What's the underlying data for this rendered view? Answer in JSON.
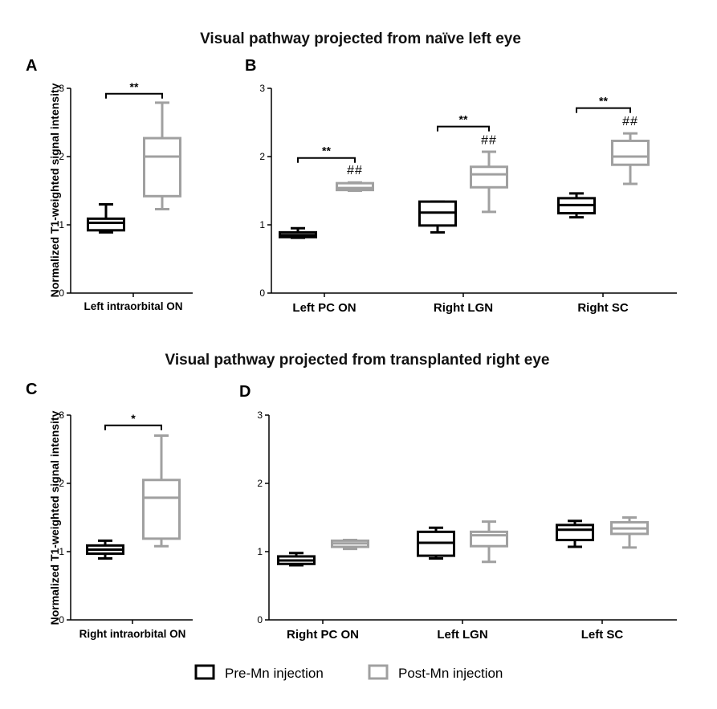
{
  "colors": {
    "pre": "#000000",
    "post": "#a0a0a0"
  },
  "titles": {
    "top": "Visual pathway projected from naïve left eye",
    "bottom": "Visual pathway projected from transplanted right eye"
  },
  "y_axis_label": "Normalized T1-weighted signal intensity",
  "legend": {
    "pre": "Pre-Mn injection",
    "post": "Post-Mn injection"
  },
  "chart_data": [
    {
      "panel": "A",
      "type": "box",
      "ylim": [
        0,
        3
      ],
      "yticks": [
        "0",
        "1",
        "2",
        "3"
      ],
      "ylabel": "Normalized T1-weighted signal intensity",
      "categories": [
        "Left intraorbital ON"
      ],
      "groups": [
        {
          "category": "Left intraorbital ON",
          "series": "pre",
          "min": 0.89,
          "q1": 0.92,
          "median": 1.03,
          "q3": 1.09,
          "max": 1.3
        },
        {
          "category": "Left intraorbital ON",
          "series": "post",
          "min": 1.23,
          "q1": 1.42,
          "median": 2.0,
          "q3": 2.27,
          "max": 2.79
        }
      ],
      "brackets": [
        {
          "category_index": 0,
          "label": "**",
          "y": 2.92
        }
      ],
      "hashes": []
    },
    {
      "panel": "B",
      "type": "box",
      "ylim": [
        0,
        3
      ],
      "yticks": [
        "0",
        "1",
        "2",
        "3"
      ],
      "categories": [
        "Left PC ON",
        "Right LGN",
        "Right SC"
      ],
      "groups": [
        {
          "category": "Left PC ON",
          "series": "pre",
          "min": 0.81,
          "q1": 0.82,
          "median": 0.85,
          "q3": 0.89,
          "max": 0.95
        },
        {
          "category": "Left PC ON",
          "series": "post",
          "min": 1.5,
          "q1": 1.51,
          "median": 1.54,
          "q3": 1.61,
          "max": 1.62
        },
        {
          "category": "Right LGN",
          "series": "pre",
          "min": 0.89,
          "q1": 0.99,
          "median": 1.18,
          "q3": 1.34,
          "max": 1.34
        },
        {
          "category": "Right LGN",
          "series": "post",
          "min": 1.19,
          "q1": 1.55,
          "median": 1.74,
          "q3": 1.85,
          "max": 2.07
        },
        {
          "category": "Right SC",
          "series": "pre",
          "min": 1.11,
          "q1": 1.17,
          "median": 1.29,
          "q3": 1.39,
          "max": 1.46
        },
        {
          "category": "Right SC",
          "series": "post",
          "min": 1.6,
          "q1": 1.88,
          "median": 2.0,
          "q3": 2.23,
          "max": 2.34
        }
      ],
      "brackets": [
        {
          "category_index": 0,
          "label": "**",
          "y": 1.98
        },
        {
          "category_index": 1,
          "label": "**",
          "y": 2.44
        },
        {
          "category_index": 2,
          "label": "**",
          "y": 2.71
        }
      ],
      "hashes": [
        {
          "category_index": 0,
          "label": "##",
          "y": 1.74
        },
        {
          "category_index": 1,
          "label": "##",
          "y": 2.18
        },
        {
          "category_index": 2,
          "label": "##",
          "y": 2.46
        }
      ]
    },
    {
      "panel": "C",
      "type": "box",
      "ylim": [
        0,
        3
      ],
      "yticks": [
        "0",
        "1",
        "2",
        "3"
      ],
      "ylabel": "Normalized T1-weighted signal intensity",
      "categories": [
        "Right intraorbital ON"
      ],
      "groups": [
        {
          "category": "Right intraorbital ON",
          "series": "pre",
          "min": 0.9,
          "q1": 0.97,
          "median": 1.03,
          "q3": 1.09,
          "max": 1.16
        },
        {
          "category": "Right intraorbital ON",
          "series": "post",
          "min": 1.08,
          "q1": 1.19,
          "median": 1.79,
          "q3": 2.05,
          "max": 2.7
        }
      ],
      "brackets": [
        {
          "category_index": 0,
          "label": "*",
          "y": 2.85
        }
      ],
      "hashes": []
    },
    {
      "panel": "D",
      "type": "box",
      "ylim": [
        0,
        3
      ],
      "yticks": [
        "0",
        "1",
        "2",
        "3"
      ],
      "categories": [
        "Right PC ON",
        "Left LGN",
        "Left SC"
      ],
      "groups": [
        {
          "category": "Right PC ON",
          "series": "pre",
          "min": 0.8,
          "q1": 0.82,
          "median": 0.87,
          "q3": 0.93,
          "max": 0.98
        },
        {
          "category": "Right PC ON",
          "series": "post",
          "min": 1.04,
          "q1": 1.07,
          "median": 1.12,
          "q3": 1.16,
          "max": 1.17
        },
        {
          "category": "Left LGN",
          "series": "pre",
          "min": 0.9,
          "q1": 0.94,
          "median": 1.13,
          "q3": 1.29,
          "max": 1.35
        },
        {
          "category": "Left LGN",
          "series": "post",
          "min": 0.85,
          "q1": 1.08,
          "median": 1.24,
          "q3": 1.29,
          "max": 1.44
        },
        {
          "category": "Left SC",
          "series": "pre",
          "min": 1.07,
          "q1": 1.17,
          "median": 1.32,
          "q3": 1.39,
          "max": 1.45
        },
        {
          "category": "Left SC",
          "series": "post",
          "min": 1.06,
          "q1": 1.26,
          "median": 1.34,
          "q3": 1.43,
          "max": 1.5
        }
      ],
      "brackets": [],
      "hashes": []
    }
  ]
}
